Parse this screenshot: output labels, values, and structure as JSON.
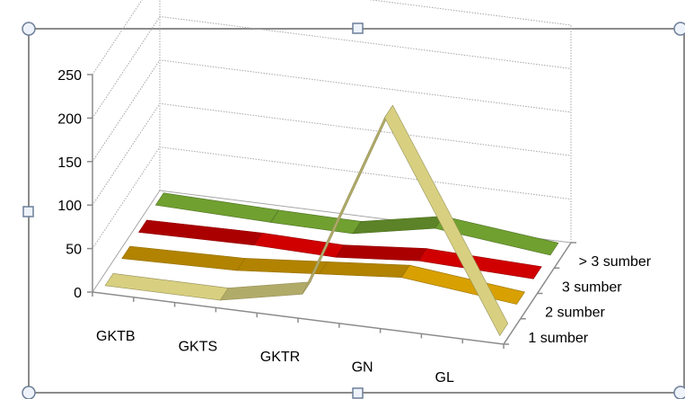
{
  "chart_data": {
    "type": "line",
    "subtype": "3d-line",
    "title": "",
    "xlabel": "",
    "ylabel": "",
    "ylim": [
      0,
      250
    ],
    "y_ticks": [
      "0",
      "50",
      "100",
      "150",
      "200",
      "250"
    ],
    "grid": true,
    "legend": "none",
    "categories": [
      "GKTB",
      "GKTS",
      "GKTR",
      "GN",
      "GL"
    ],
    "series": [
      {
        "name": "1 sumber",
        "values": [
          1,
          1,
          20,
          235,
          1
        ],
        "color": "#d8d080"
      },
      {
        "name": "2 sumber",
        "values": [
          3,
          6,
          14,
          22,
          8
        ],
        "color": "#d8a000"
      },
      {
        "name": "3 sumber",
        "values": [
          4,
          6,
          4,
          12,
          8
        ],
        "color": "#d00000"
      },
      {
        "name": "> 3 sumber",
        "values": [
          6,
          3,
          2,
          20,
          6
        ],
        "color": "#70a030"
      }
    ]
  }
}
